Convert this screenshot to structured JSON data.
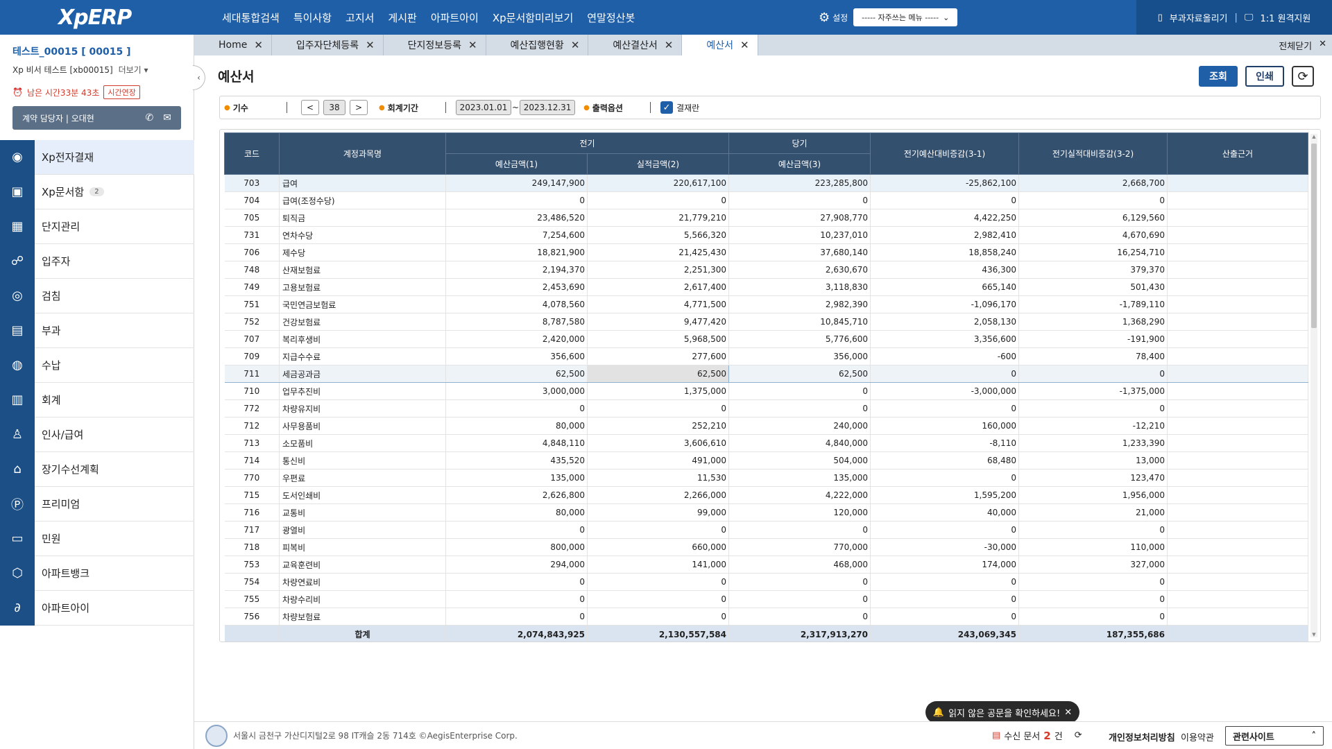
{
  "brand": {
    "logo": "XpERP"
  },
  "topnav": [
    "세대통합검색",
    "특이사항",
    "고지서",
    "게시판",
    "아파트아이",
    "Xp문서함미리보기",
    "연말정산봇"
  ],
  "top_settings": {
    "label": "설정",
    "select_value": "----- 자주쓰는 메뉴 -----"
  },
  "top_right": {
    "upload": "부과자료올리기",
    "remote": "1:1 원격지원"
  },
  "user": {
    "id": "테스트_00015 [ 00015 ]",
    "sub": "Xp 비서 테스트 [xb00015]",
    "more": "더보기",
    "timer": "남은 시간33분 43초",
    "extend": "시간연장",
    "contact_label": "계약 담당자",
    "contact_name": "오대현"
  },
  "menu": [
    {
      "label": "Xp전자결재",
      "icon": "seal-icon",
      "active": true
    },
    {
      "label": "Xp문서함",
      "icon": "xp-doc-icon",
      "badge": "2"
    },
    {
      "label": "단지관리",
      "icon": "building-icon"
    },
    {
      "label": "입주자",
      "icon": "residents-icon"
    },
    {
      "label": "검침",
      "icon": "meter-icon"
    },
    {
      "label": "부과",
      "icon": "billing-icon"
    },
    {
      "label": "수납",
      "icon": "payment-icon"
    },
    {
      "label": "회계",
      "icon": "ledger-icon"
    },
    {
      "label": "인사/급여",
      "icon": "person-icon"
    },
    {
      "label": "장기수선계획",
      "icon": "home-repair-icon"
    },
    {
      "label": "프리미엄",
      "icon": "premium-icon"
    },
    {
      "label": "민원",
      "icon": "complaint-icon"
    },
    {
      "label": "아파트뱅크",
      "icon": "bank-icon"
    },
    {
      "label": "아파트아이",
      "icon": "apartment-i-icon"
    }
  ],
  "tabs": [
    {
      "label": "Home",
      "active": false
    },
    {
      "label": "입주자단체등록",
      "active": false
    },
    {
      "label": "단지정보등록",
      "active": false
    },
    {
      "label": "예산집행현황",
      "active": false
    },
    {
      "label": "예산결산서",
      "active": false
    },
    {
      "label": "예산서",
      "active": true
    }
  ],
  "close_all": "전체닫기",
  "page": {
    "title": "예산서",
    "btn_query": "조회",
    "btn_print": "인쇄"
  },
  "filters": {
    "term_label": "기수",
    "term_value": "38",
    "period_label": "회계기간",
    "period_from": "2023.01.01",
    "period_sep": "~",
    "period_to": "2023.12.31",
    "output_label": "출력옵션",
    "approval_label": "결재란",
    "approval_checked": true
  },
  "table": {
    "headers": {
      "code": "코드",
      "name": "계정과목명",
      "prev_group": "전기",
      "curr_group": "당기",
      "budget1": "예산금액(1)",
      "actual2": "실적금액(2)",
      "budget3": "예산금액(3)",
      "diff31": "전기예산대비증감(3-1)",
      "diff32": "전기실적대비증감(3-2)",
      "basis": "산출근거"
    },
    "rows": [
      [
        "703",
        "급여",
        "249,147,900",
        "220,617,100",
        "223,285,800",
        "-25,862,100",
        "2,668,700",
        ""
      ],
      [
        "704",
        "급여(조정수당)",
        "0",
        "0",
        "0",
        "0",
        "0",
        ""
      ],
      [
        "705",
        "퇴직금",
        "23,486,520",
        "21,779,210",
        "27,908,770",
        "4,422,250",
        "6,129,560",
        ""
      ],
      [
        "731",
        "연차수당",
        "7,254,600",
        "5,566,320",
        "10,237,010",
        "2,982,410",
        "4,670,690",
        ""
      ],
      [
        "706",
        "제수당",
        "18,821,900",
        "21,425,430",
        "37,680,140",
        "18,858,240",
        "16,254,710",
        ""
      ],
      [
        "748",
        "산재보험료",
        "2,194,370",
        "2,251,300",
        "2,630,670",
        "436,300",
        "379,370",
        ""
      ],
      [
        "749",
        "고용보험료",
        "2,453,690",
        "2,617,400",
        "3,118,830",
        "665,140",
        "501,430",
        ""
      ],
      [
        "751",
        "국민연금보험료",
        "4,078,560",
        "4,771,500",
        "2,982,390",
        "-1,096,170",
        "-1,789,110",
        ""
      ],
      [
        "752",
        "건강보험료",
        "8,787,580",
        "9,477,420",
        "10,845,710",
        "2,058,130",
        "1,368,290",
        ""
      ],
      [
        "707",
        "복리후생비",
        "2,420,000",
        "5,968,500",
        "5,776,600",
        "3,356,600",
        "-191,900",
        ""
      ],
      [
        "709",
        "지급수수료",
        "356,600",
        "277,600",
        "356,000",
        "-600",
        "78,400",
        ""
      ],
      [
        "711",
        "세금공과금",
        "62,500",
        "62,500",
        "62,500",
        "0",
        "0",
        ""
      ],
      [
        "710",
        "업무추진비",
        "3,000,000",
        "1,375,000",
        "0",
        "-3,000,000",
        "-1,375,000",
        ""
      ],
      [
        "772",
        "차량유지비",
        "0",
        "0",
        "0",
        "0",
        "0",
        ""
      ],
      [
        "712",
        "사무용품비",
        "80,000",
        "252,210",
        "240,000",
        "160,000",
        "-12,210",
        ""
      ],
      [
        "713",
        "소모품비",
        "4,848,110",
        "3,606,610",
        "4,840,000",
        "-8,110",
        "1,233,390",
        ""
      ],
      [
        "714",
        "통신비",
        "435,520",
        "491,000",
        "504,000",
        "68,480",
        "13,000",
        ""
      ],
      [
        "770",
        "우편료",
        "135,000",
        "11,530",
        "135,000",
        "0",
        "123,470",
        ""
      ],
      [
        "715",
        "도서인쇄비",
        "2,626,800",
        "2,266,000",
        "4,222,000",
        "1,595,200",
        "1,956,000",
        ""
      ],
      [
        "716",
        "교통비",
        "80,000",
        "99,000",
        "120,000",
        "40,000",
        "21,000",
        ""
      ],
      [
        "717",
        "광열비",
        "0",
        "0",
        "0",
        "0",
        "0",
        ""
      ],
      [
        "718",
        "피복비",
        "800,000",
        "660,000",
        "770,000",
        "-30,000",
        "110,000",
        ""
      ],
      [
        "753",
        "교육훈련비",
        "294,000",
        "141,000",
        "468,000",
        "174,000",
        "327,000",
        ""
      ],
      [
        "754",
        "차량연료비",
        "0",
        "0",
        "0",
        "0",
        "0",
        ""
      ],
      [
        "755",
        "차량수리비",
        "0",
        "0",
        "0",
        "0",
        "0",
        ""
      ],
      [
        "756",
        "차량보험료",
        "0",
        "0",
        "0",
        "0",
        "0",
        ""
      ]
    ],
    "total": [
      "",
      "합계",
      "2,074,843,925",
      "2,130,557,584",
      "2,317,913,270",
      "243,069,345",
      "187,355,686",
      ""
    ]
  },
  "footer": {
    "address": "서울시 금천구 가산디지털2로 98 IT캐슬 2동 714호 ©AegisEnterprise Corp.",
    "inbox_label": "수신 문서",
    "inbox_count": "2",
    "inbox_unit": "건",
    "privacy": "개인정보처리방침",
    "terms": "이용약관",
    "related": "관련사이트"
  },
  "toast": {
    "text": "읽지 않은 공문을 확인하세요!"
  },
  "colors": {
    "brand_blue": "#1f5fa8",
    "sidebar_blue": "#1b4f86",
    "header_navy": "#34506f",
    "alert_red": "#d23b2b"
  }
}
